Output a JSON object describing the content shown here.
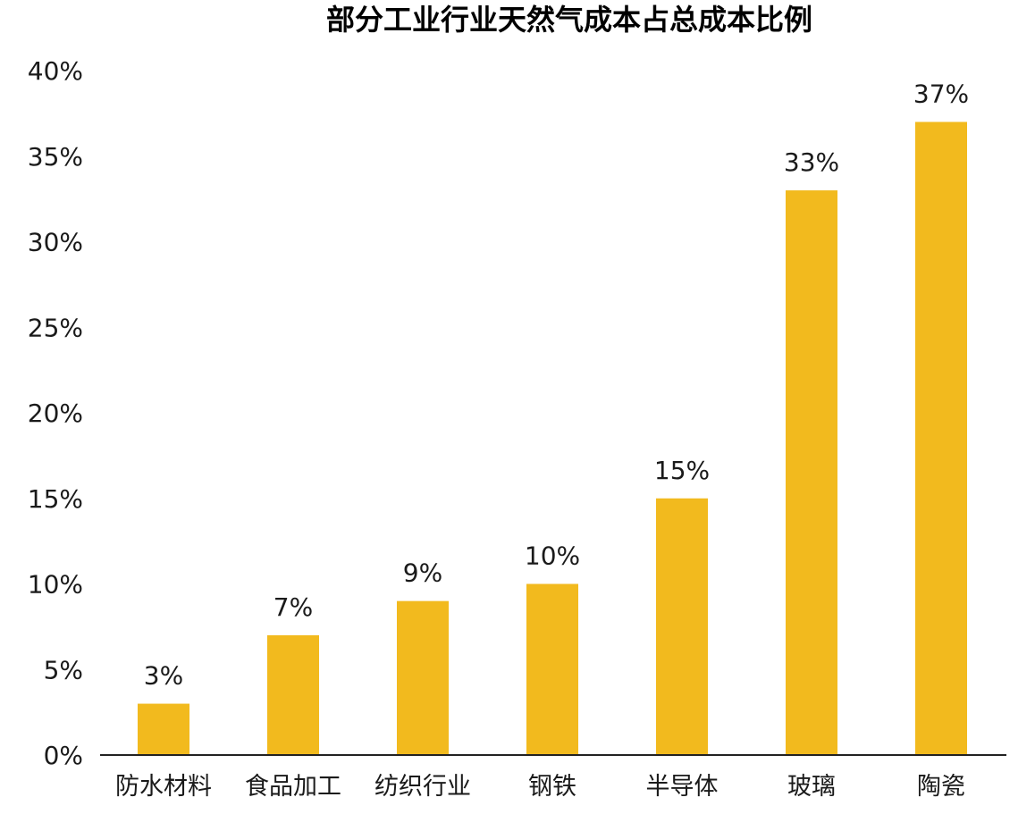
{
  "chart_data": {
    "type": "bar",
    "title": "部分工业行业天然气成本占总成本比例",
    "xlabel": "",
    "ylabel": "",
    "categories": [
      "防水材料",
      "食品加工",
      "纺织行业",
      "钢铁",
      "半导体",
      "玻璃",
      "陶瓷"
    ],
    "values": [
      3,
      7,
      9,
      10,
      15,
      33,
      37
    ],
    "data_labels": [
      "3%",
      "7%",
      "9%",
      "10%",
      "15%",
      "33%",
      "37%"
    ],
    "ylim": [
      0,
      40
    ],
    "yticks": [
      0,
      5,
      10,
      15,
      20,
      25,
      30,
      35,
      40
    ],
    "ytick_labels": [
      "0%",
      "5%",
      "10%",
      "15%",
      "20%",
      "25%",
      "30%",
      "35%",
      "40%"
    ],
    "grid": false,
    "legend": "none",
    "bar_color": "#F2BA1E",
    "axis_color": "#222222"
  }
}
